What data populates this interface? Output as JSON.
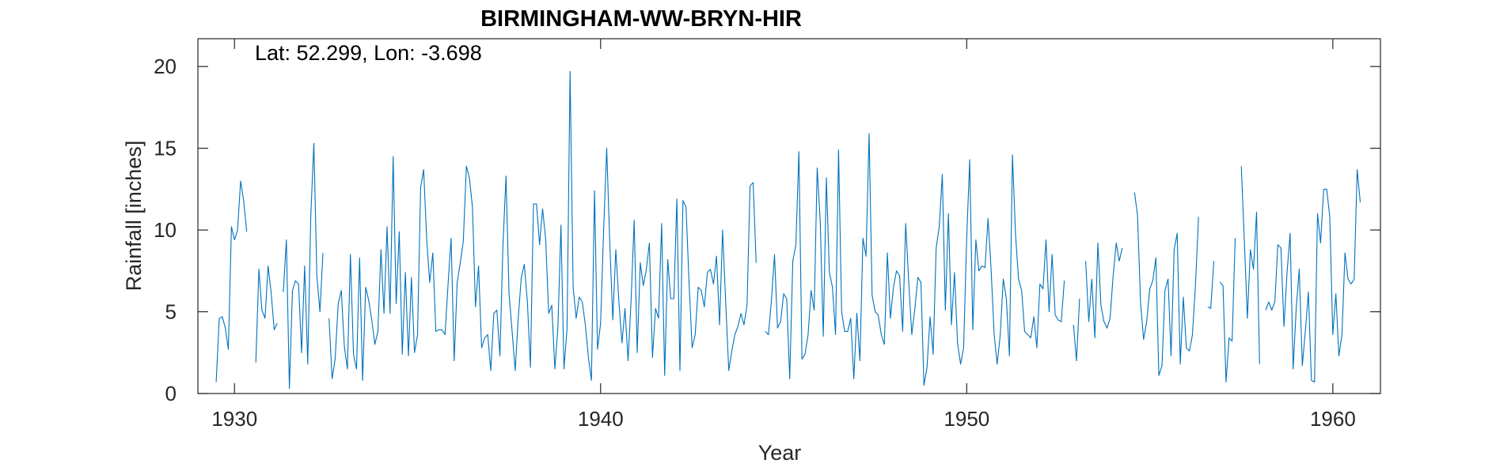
{
  "chart_data": {
    "type": "line",
    "title": "BIRMINGHAM-WW-BRYN-HIR",
    "xlabel": "Year",
    "ylabel": "Rainfall [inches]",
    "annotation": "Lat: 52.299, Lon: -3.698",
    "xlim": [
      1929,
      1961.3
    ],
    "ylim": [
      0,
      21.7
    ],
    "xticks": [
      1930,
      1940,
      1950,
      1960
    ],
    "yticks": [
      0,
      5,
      10,
      15,
      20
    ],
    "grid": false,
    "line_color": "#0072BD",
    "series": [
      {
        "x_start": 1929.5,
        "step": 0.08333,
        "values": [
          0.7,
          4.6,
          4.7,
          4.0,
          2.7,
          10.2,
          9.4,
          10.0,
          13.0,
          11.8,
          9.9,
          null,
          null,
          1.9,
          7.6,
          5.1,
          4.6,
          7.8,
          6.2,
          3.9,
          4.3,
          null,
          6.2,
          9.4,
          0.3,
          6.3,
          6.9,
          6.7,
          2.5,
          7.8,
          1.8,
          10.8,
          15.3,
          7.2,
          5.0,
          8.6,
          null,
          4.6,
          0.9,
          2.1,
          5.5,
          6.3,
          2.9,
          1.5,
          8.5,
          2.4,
          1.5,
          8.3,
          0.8,
          6.5,
          5.7,
          4.5,
          3.0,
          3.8,
          8.8,
          4.9,
          10.2,
          4.9,
          14.5,
          5.5,
          9.9,
          2.4,
          7.4,
          2.3,
          7.1,
          2.5,
          3.6,
          12.6,
          13.7,
          9.4,
          6.8,
          8.6,
          3.8,
          3.9,
          3.9,
          3.6,
          6.7,
          9.5,
          2.0,
          6.8,
          8.0,
          9.3,
          13.9,
          13.2,
          11.4,
          5.3,
          7.8,
          2.8,
          3.4,
          3.6,
          1.4,
          4.9,
          5.1,
          2.3,
          9.1,
          13.3,
          6.1,
          3.8,
          1.4,
          4.6,
          7.1,
          7.9,
          5.6,
          1.6,
          11.6,
          11.6,
          9.1,
          11.3,
          9.4,
          4.9,
          5.4,
          1.5,
          4.0,
          10.3,
          1.5,
          4.0,
          19.7,
          6.5,
          4.6,
          5.9,
          5.6,
          4.2,
          2.2,
          0.8,
          12.4,
          2.7,
          4.3,
          10.0,
          15.0,
          9.3,
          4.5,
          8.8,
          5.6,
          3.1,
          5.2,
          2.0,
          5.7,
          10.6,
          2.5,
          8.0,
          6.6,
          7.6,
          9.2,
          2.2,
          5.2,
          4.6,
          10.4,
          1.1,
          8.2,
          5.8,
          5.8,
          11.9,
          1.4,
          11.8,
          11.4,
          6.8,
          2.8,
          3.6,
          6.5,
          6.3,
          5.3,
          7.4,
          7.6,
          6.7,
          8.4,
          4.2,
          10.0,
          5.6,
          1.4,
          2.6,
          3.6,
          4.1,
          4.9,
          4.2,
          5.4,
          12.7,
          12.9,
          8.0,
          null,
          null,
          3.8,
          3.6,
          5.7,
          8.5,
          4.0,
          4.4,
          6.1,
          5.8,
          0.9,
          8.1,
          9.1,
          14.8,
          2.1,
          2.4,
          3.6,
          6.3,
          5.1,
          13.8,
          10.5,
          3.5,
          13.2,
          7.4,
          6.5,
          3.6,
          14.9,
          5.0,
          3.8,
          3.8,
          4.6,
          0.9,
          4.9,
          2.0,
          9.5,
          8.4,
          15.9,
          6.0,
          5.0,
          4.8,
          3.6,
          3.0,
          8.6,
          4.6,
          6.5,
          7.5,
          7.2,
          3.8,
          10.4,
          6.8,
          3.6,
          5.2,
          7.1,
          6.8,
          0.5,
          1.6,
          4.7,
          2.4,
          8.9,
          10.2,
          13.4,
          5.1,
          11.0,
          4.2,
          7.4,
          3.1,
          1.8,
          2.8,
          9.5,
          14.3,
          3.9,
          9.4,
          7.5,
          7.8,
          7.7,
          10.7,
          7.6,
          3.6,
          1.8,
          3.6,
          7.0,
          5.8,
          2.3,
          14.6,
          9.7,
          7.0,
          6.3,
          3.8,
          3.6,
          3.4,
          4.7,
          2.8,
          6.7,
          6.4,
          9.4,
          5.0,
          8.5,
          4.8,
          4.5,
          4.4,
          6.9,
          null,
          null,
          4.2,
          2.0,
          5.8,
          null,
          8.1,
          4.4,
          7.0,
          3.4,
          9.2,
          5.4,
          4.4,
          4.0,
          4.6,
          7.2,
          9.2,
          8.1,
          8.9,
          null,
          null,
          null,
          12.3,
          10.9,
          5.5,
          3.3,
          4.4,
          6.4,
          6.9,
          8.3,
          1.1,
          1.7,
          6.3,
          7.0,
          2.3,
          8.8,
          9.8,
          1.8,
          5.9,
          2.8,
          2.6,
          3.6,
          6.7,
          10.8,
          null,
          null,
          5.3,
          5.2,
          8.1,
          null,
          6.8,
          6.6,
          0.7,
          3.4,
          3.2,
          9.5,
          null,
          13.9,
          9.4,
          4.6,
          8.8,
          7.6,
          11.1,
          1.8,
          null,
          5.1,
          5.6,
          5.1,
          5.6,
          9.1,
          8.9,
          4.1,
          7.4,
          9.8,
          1.5,
          5.2,
          7.6,
          1.7,
          3.8,
          6.2,
          0.8,
          0.7,
          11.0,
          9.2,
          12.5,
          12.5,
          10.8,
          3.6,
          6.1,
          2.3,
          3.6,
          8.6,
          7.0,
          6.7,
          7.0,
          13.7,
          11.7
        ]
      }
    ]
  }
}
